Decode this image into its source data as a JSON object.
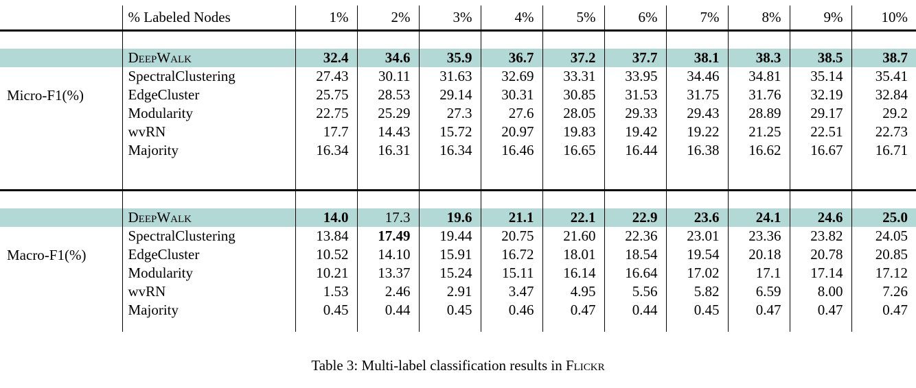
{
  "accent_color": "#b3d9d6",
  "table": {
    "header": {
      "corner": "",
      "label_col": "% Labeled Nodes",
      "percent_cols": [
        "1%",
        "2%",
        "3%",
        "4%",
        "5%",
        "6%",
        "7%",
        "8%",
        "9%",
        "10%"
      ]
    },
    "sections": [
      {
        "metric": "Micro-F1(%)",
        "rows": [
          {
            "method": "DeepWalk",
            "smallcaps": true,
            "highlight": true,
            "values": [
              "32.4",
              "34.6",
              "35.9",
              "36.7",
              "37.2",
              "37.7",
              "38.1",
              "38.3",
              "38.5",
              "38.7"
            ],
            "bold": [
              true,
              true,
              true,
              true,
              true,
              true,
              true,
              true,
              true,
              true
            ]
          },
          {
            "method": "SpectralClustering",
            "smallcaps": false,
            "highlight": false,
            "values": [
              "27.43",
              "30.11",
              "31.63",
              "32.69",
              "33.31",
              "33.95",
              "34.46",
              "34.81",
              "35.14",
              "35.41"
            ],
            "bold": [
              false,
              false,
              false,
              false,
              false,
              false,
              false,
              false,
              false,
              false
            ]
          },
          {
            "method": "EdgeCluster",
            "smallcaps": false,
            "highlight": false,
            "values": [
              "25.75",
              "28.53",
              "29.14",
              "30.31",
              "30.85",
              "31.53",
              "31.75",
              "31.76",
              "32.19",
              "32.84"
            ],
            "bold": [
              false,
              false,
              false,
              false,
              false,
              false,
              false,
              false,
              false,
              false
            ]
          },
          {
            "method": "Modularity",
            "smallcaps": false,
            "highlight": false,
            "values": [
              "22.75",
              "25.29",
              "27.3",
              "27.6",
              "28.05",
              "29.33",
              "29.43",
              "28.89",
              "29.17",
              "29.2"
            ],
            "bold": [
              false,
              false,
              false,
              false,
              false,
              false,
              false,
              false,
              false,
              false
            ]
          },
          {
            "method": "wvRN",
            "smallcaps": false,
            "highlight": false,
            "values": [
              "17.7",
              "14.43",
              "15.72",
              "20.97",
              "19.83",
              "19.42",
              "19.22",
              "21.25",
              "22.51",
              "22.73"
            ],
            "bold": [
              false,
              false,
              false,
              false,
              false,
              false,
              false,
              false,
              false,
              false
            ]
          },
          {
            "method": "Majority",
            "smallcaps": false,
            "highlight": false,
            "values": [
              "16.34",
              "16.31",
              "16.34",
              "16.46",
              "16.65",
              "16.44",
              "16.38",
              "16.62",
              "16.67",
              "16.71"
            ],
            "bold": [
              false,
              false,
              false,
              false,
              false,
              false,
              false,
              false,
              false,
              false
            ]
          }
        ]
      },
      {
        "metric": "Macro-F1(%)",
        "rows": [
          {
            "method": "DeepWalk",
            "smallcaps": true,
            "highlight": true,
            "values": [
              "14.0",
              "17.3",
              "19.6",
              "21.1",
              "22.1",
              "22.9",
              "23.6",
              "24.1",
              "24.6",
              "25.0"
            ],
            "bold": [
              true,
              false,
              true,
              true,
              true,
              true,
              true,
              true,
              true,
              true
            ]
          },
          {
            "method": "SpectralClustering",
            "smallcaps": false,
            "highlight": false,
            "values": [
              "13.84",
              "17.49",
              "19.44",
              "20.75",
              "21.60",
              "22.36",
              "23.01",
              "23.36",
              "23.82",
              "24.05"
            ],
            "bold": [
              false,
              true,
              false,
              false,
              false,
              false,
              false,
              false,
              false,
              false
            ]
          },
          {
            "method": "EdgeCluster",
            "smallcaps": false,
            "highlight": false,
            "values": [
              "10.52",
              "14.10",
              "15.91",
              "16.72",
              "18.01",
              "18.54",
              "19.54",
              "20.18",
              "20.78",
              "20.85"
            ],
            "bold": [
              false,
              false,
              false,
              false,
              false,
              false,
              false,
              false,
              false,
              false
            ]
          },
          {
            "method": "Modularity",
            "smallcaps": false,
            "highlight": false,
            "values": [
              "10.21",
              "13.37",
              "15.24",
              "15.11",
              "16.14",
              "16.64",
              "17.02",
              "17.1",
              "17.14",
              "17.12"
            ],
            "bold": [
              false,
              false,
              false,
              false,
              false,
              false,
              false,
              false,
              false,
              false
            ]
          },
          {
            "method": "wvRN",
            "smallcaps": false,
            "highlight": false,
            "values": [
              "1.53",
              "2.46",
              "2.91",
              "3.47",
              "4.95",
              "5.56",
              "5.82",
              "6.59",
              "8.00",
              "7.26"
            ],
            "bold": [
              false,
              false,
              false,
              false,
              false,
              false,
              false,
              false,
              false,
              false
            ]
          },
          {
            "method": "Majority",
            "smallcaps": false,
            "highlight": false,
            "values": [
              "0.45",
              "0.44",
              "0.45",
              "0.46",
              "0.47",
              "0.44",
              "0.45",
              "0.47",
              "0.47",
              "0.47"
            ],
            "bold": [
              false,
              false,
              false,
              false,
              false,
              false,
              false,
              false,
              false,
              false
            ]
          }
        ]
      }
    ]
  },
  "caption": {
    "prefix": "Table 3: Multi-label classification results in ",
    "dataset": "Flickr"
  }
}
